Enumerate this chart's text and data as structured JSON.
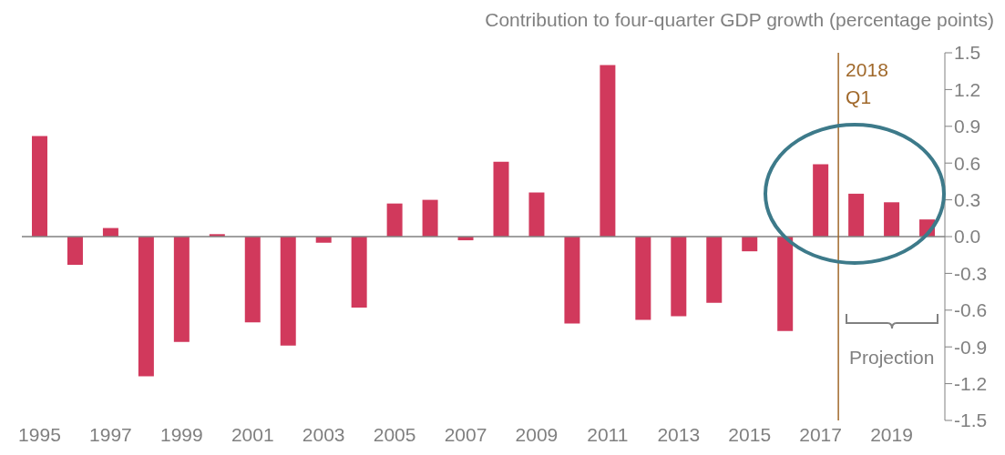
{
  "chart_data": {
    "type": "bar",
    "ylabel": "Contribution to four-quarter GDP growth (percentage points)",
    "x": [
      1995,
      1996,
      1997,
      1998,
      1999,
      2000,
      2001,
      2002,
      2003,
      2004,
      2005,
      2006,
      2007,
      2008,
      2009,
      2010,
      2011,
      2012,
      2013,
      2014,
      2015,
      2016,
      2017,
      2018,
      2019,
      2020
    ],
    "values": [
      0.82,
      -0.23,
      0.07,
      -1.14,
      -0.86,
      0.02,
      -0.7,
      -0.89,
      -0.05,
      -0.58,
      0.27,
      0.3,
      -0.03,
      0.61,
      0.36,
      -0.71,
      1.4,
      -0.68,
      -0.65,
      -0.54,
      -0.12,
      -0.77,
      0.59,
      0.35,
      0.28,
      0.14
    ],
    "color": "#d1395c",
    "xlim": [
      1994.5,
      2020.5
    ],
    "xticks": [
      1995,
      1997,
      1999,
      2001,
      2003,
      2005,
      2007,
      2009,
      2011,
      2013,
      2015,
      2017,
      2019
    ],
    "ylim": [
      -1.5,
      1.5
    ],
    "yticks": [
      -1.5,
      -1.2,
      -0.9,
      -0.6,
      -0.3,
      {
        "value": 0,
        "label": "0.0"
      },
      0.3,
      0.6,
      0.9,
      1.2,
      1.5
    ],
    "ref_lines": [
      {
        "axis": "x",
        "value": 2017.5,
        "label": "2018\nQ1",
        "color": "#a0682a"
      }
    ],
    "annotations": [
      "Projection"
    ],
    "legend": false
  }
}
